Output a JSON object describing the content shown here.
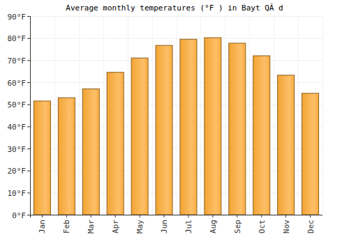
{
  "chart_data": {
    "type": "bar",
    "title": "Average monthly temperatures (°F ) in Bayt QÃ d",
    "categories": [
      "Jan",
      "Feb",
      "Mar",
      "Apr",
      "May",
      "Jun",
      "Jul",
      "Aug",
      "Sep",
      "Oct",
      "Nov",
      "Dec"
    ],
    "values": [
      51.5,
      53,
      57,
      64.5,
      71,
      76.7,
      79.5,
      80.2,
      77.7,
      72,
      63.2,
      55
    ],
    "color": "#fba935",
    "ylim": [
      0,
      90
    ],
    "yticks": [
      {
        "value": 0,
        "label": "0°F"
      },
      {
        "value": 10,
        "label": "10°F"
      },
      {
        "value": 20,
        "label": "20°F"
      },
      {
        "value": 30,
        "label": "30°F"
      },
      {
        "value": 40,
        "label": "40°F"
      },
      {
        "value": 50,
        "label": "50°F"
      },
      {
        "value": 60,
        "label": "60°F"
      },
      {
        "value": 70,
        "label": "70°F"
      },
      {
        "value": 80,
        "label": "80°F"
      },
      {
        "value": 90,
        "label": "90°F"
      }
    ],
    "grid": true
  }
}
